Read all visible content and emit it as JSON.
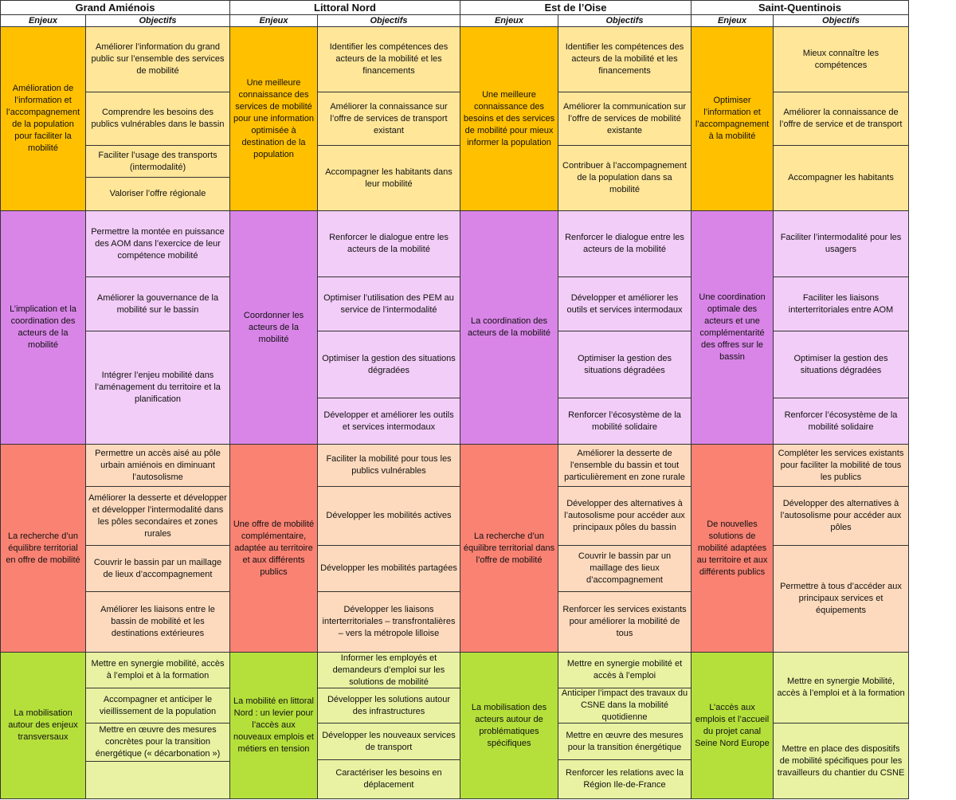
{
  "regions": [
    {
      "name": "Grand Amiénois",
      "enjeux_header": "Enjeux",
      "objectifs_header": "Objectifs",
      "themes": [
        {
          "enjeu": "Amélioration de l’information et l’accompagnement de la population pour faciliter la mobilité",
          "objectifs": [
            "Améliorer l’information du grand public sur l’ensemble des services de mobilité",
            "Comprendre les besoins des publics vulnérables dans le bassin",
            "Faciliter l’usage des transports (intermodalité)",
            "Valoriser l’offre régionale"
          ]
        },
        {
          "enjeu": "L’implication et la coordination des acteurs de la mobilité",
          "objectifs": [
            "Permettre la montée en puissance des AOM dans l’exercice de leur compétence mobilité",
            "Améliorer la gouvernance de la mobilité sur le bassin",
            "Intégrer l’enjeu mobilité dans l’aménagement du territoire et la planification"
          ]
        },
        {
          "enjeu": "La recherche d’un équilibre territorial en offre de mobilité",
          "objectifs": [
            "Permettre un accès aisé au pôle urbain amiénois en diminuant l’autosolisme",
            "Améliorer la desserte et développer et développer l’intermodalité dans les pôles secondaires et zones rurales",
            "Couvrir le bassin par un maillage de lieux d’accompagnement",
            "Améliorer les liaisons entre le bassin de mobilité et les destinations extérieures"
          ]
        },
        {
          "enjeu": "La mobilisation autour des enjeux transversaux",
          "objectifs": [
            "Mettre en synergie mobilité, accès à l’emploi et à la formation",
            "Accompagner et anticiper le vieillissement de la population",
            "Mettre en œuvre des mesures concrètes pour la transition énergétique (« décarbonation »)"
          ]
        }
      ]
    },
    {
      "name": "Littoral Nord",
      "enjeux_header": "Enjeux",
      "objectifs_header": "Objectifs",
      "themes": [
        {
          "enjeu": "Une meilleure connaissance des services de mobilité pour une information optimisée à destination de la population",
          "objectifs": [
            "Identifier les compétences des acteurs de la mobilité et les financements",
            "Améliorer la connaissance sur l’offre de services de transport existant",
            "Accompagner les habitants dans leur mobilité"
          ]
        },
        {
          "enjeu": "Coordonner les acteurs de la mobilité",
          "objectifs": [
            "Renforcer le dialogue entre les acteurs de la mobilité",
            "Optimiser l’utilisation des PEM au service de l’intermodalité",
            "Optimiser la gestion des situations dégradées",
            "Développer et améliorer les outils et services intermodaux"
          ]
        },
        {
          "enjeu": "Une offre de mobilité complémentaire, adaptée au territoire et aux différents publics",
          "objectifs": [
            "Faciliter la mobilité pour tous les publics vulnérables",
            "Développer les mobilités actives",
            "Développer les mobilités partagées",
            "Développer les liaisons interterritoriales – transfrontalières – vers la métropole lilloise"
          ]
        },
        {
          "enjeu": "La mobilité en littoral Nord : un levier pour l’accès aux nouveaux emplois et métiers en tension",
          "objectifs": [
            "Informer les employés et demandeurs d’emploi sur les solutions de mobilité",
            "Développer les solutions autour des infrastructures",
            "Développer les nouveaux services de transport",
            "Caractériser les besoins en déplacement"
          ]
        }
      ]
    },
    {
      "name": "Est de l’Oise",
      "enjeux_header": "Enjeux",
      "objectifs_header": "Objectifs",
      "themes": [
        {
          "enjeu": "Une meilleure connaissance des besoins et des services de mobilité pour mieux informer la population",
          "objectifs": [
            "Identifier les compétences des acteurs de la mobilité et les financements",
            "Améliorer la communication sur l’offre de services de mobilité existante",
            "Contribuer à l’accompagnement de la population dans sa mobilité"
          ]
        },
        {
          "enjeu": "La coordination des acteurs de la mobilité",
          "objectifs": [
            "Renforcer le dialogue entre les acteurs de la mobilité",
            "Développer et améliorer les outils et services intermodaux",
            "Optimiser la gestion des situations dégradées",
            "Renforcer l’écosystème de la mobilité solidaire"
          ]
        },
        {
          "enjeu": "La recherche d’un équilibre territorial dans l’offre de mobilité",
          "objectifs": [
            "Améliorer la desserte de l’ensemble du bassin et tout particulièrement en zone rurale",
            "Développer des alternatives à l’autosolisme pour accéder aux principaux pôles du bassin",
            "Couvrir le bassin par un maillage des lieux d’accompagnement",
            "Renforcer les services existants pour améliorer la mobilité de tous"
          ]
        },
        {
          "enjeu": "La mobilisation des acteurs autour de problématiques spécifiques",
          "objectifs": [
            "Mettre en synergie mobilité et accès à l’emploi",
            "Anticiper l’impact des travaux du CSNE dans la mobilité quotidienne",
            "Mettre en œuvre des mesures pour la transition énergétique",
            "Renforcer les relations avec la Région Ile-de-France"
          ]
        }
      ]
    },
    {
      "name": "Saint-Quentinois",
      "enjeux_header": "Enjeux",
      "objectifs_header": "Objectifs",
      "themes": [
        {
          "enjeu": "Optimiser l’information et l’accompagnement à la mobilité",
          "objectifs": [
            "Mieux connaître les compétences",
            "Améliorer la connaissance de l’offre de service et de transport",
            "Accompagner les habitants"
          ]
        },
        {
          "enjeu": "Une coordination optimale des acteurs et une complémentarité des offres sur le bassin",
          "objectifs": [
            "Faciliter l’intermodalité pour les usagers",
            "Faciliter les liaisons interterritoriales entre AOM",
            "Optimiser la gestion des situations dégradées",
            "Renforcer l’écosystème de la mobilité solidaire"
          ]
        },
        {
          "enjeu": "De nouvelles solutions de mobilité adaptées au territoire et aux différents publics",
          "objectifs": [
            "Compléter les services existants pour faciliter la mobilité de tous les publics",
            "Développer des alternatives à l’autosolisme pour accéder aux pôles",
            "Permettre à tous d’accéder aux principaux services et équipements"
          ]
        },
        {
          "enjeu": "L’accès aux emplois et l’accueil du projet canal Seine Nord Europe",
          "objectifs": [
            "Mettre en synergie Mobilité, accès à l’emploi et à la formation",
            "Mettre en place des dispositifs de mobilité spécifiques pour les travailleurs du chantier du CSNE"
          ]
        }
      ]
    }
  ]
}
